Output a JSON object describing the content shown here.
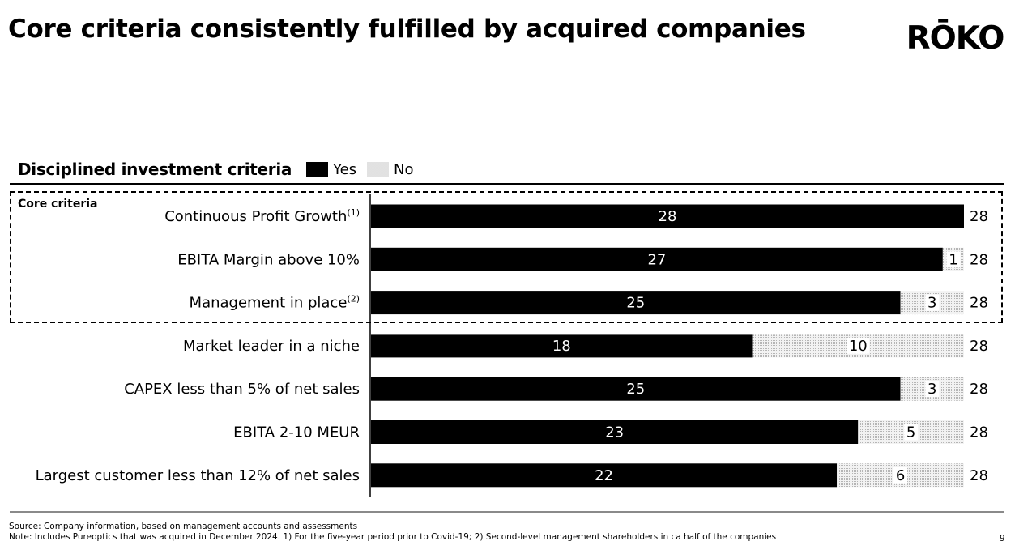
{
  "page": {
    "title": "Core criteria consistently fulfilled by acquired companies",
    "logo_text": "RŌKO",
    "section_heading": "Disciplined investment criteria",
    "core_group_label": "Core criteria",
    "footnotes": {
      "source": "Source: Company information, based on management accounts and assessments",
      "note": "Note: Includes Pureoptics that was acquired in December 2024. 1) For the five-year period prior to Covid-19; 2) Second-level management shareholders in ca half of the companies"
    },
    "page_number": "9"
  },
  "colors": {
    "yes": "#000000",
    "no_pattern_bg": "#f2f2f2",
    "no_pattern_dot": "#b5b5b5"
  },
  "chart_data": {
    "type": "bar",
    "orientation": "horizontal",
    "stacked": true,
    "title": "Disciplined investment criteria",
    "xlabel": "",
    "ylabel": "",
    "xlim": [
      0,
      28
    ],
    "grid": false,
    "legend": {
      "placement": "top-left",
      "entries": [
        "Yes",
        "No"
      ]
    },
    "categories": [
      {
        "label": "Continuous Profit Growth",
        "superscript": "(1)",
        "core": true
      },
      {
        "label": "EBITA Margin above 10%",
        "superscript": "",
        "core": true
      },
      {
        "label": "Management in place",
        "superscript": "(2)",
        "core": true
      },
      {
        "label": "Market leader in a niche",
        "superscript": "",
        "core": false
      },
      {
        "label": "CAPEX less than 5% of net sales",
        "superscript": "",
        "core": false
      },
      {
        "label": "EBITA 2-10 MEUR",
        "superscript": "",
        "core": false
      },
      {
        "label": "Largest customer less than 12% of net sales",
        "superscript": "",
        "core": false
      }
    ],
    "series": [
      {
        "name": "Yes",
        "values": [
          28,
          27,
          25,
          18,
          25,
          23,
          22
        ]
      },
      {
        "name": "No",
        "values": [
          0,
          1,
          3,
          10,
          3,
          5,
          6
        ]
      }
    ],
    "totals": [
      28,
      28,
      28,
      28,
      28,
      28,
      28
    ]
  }
}
